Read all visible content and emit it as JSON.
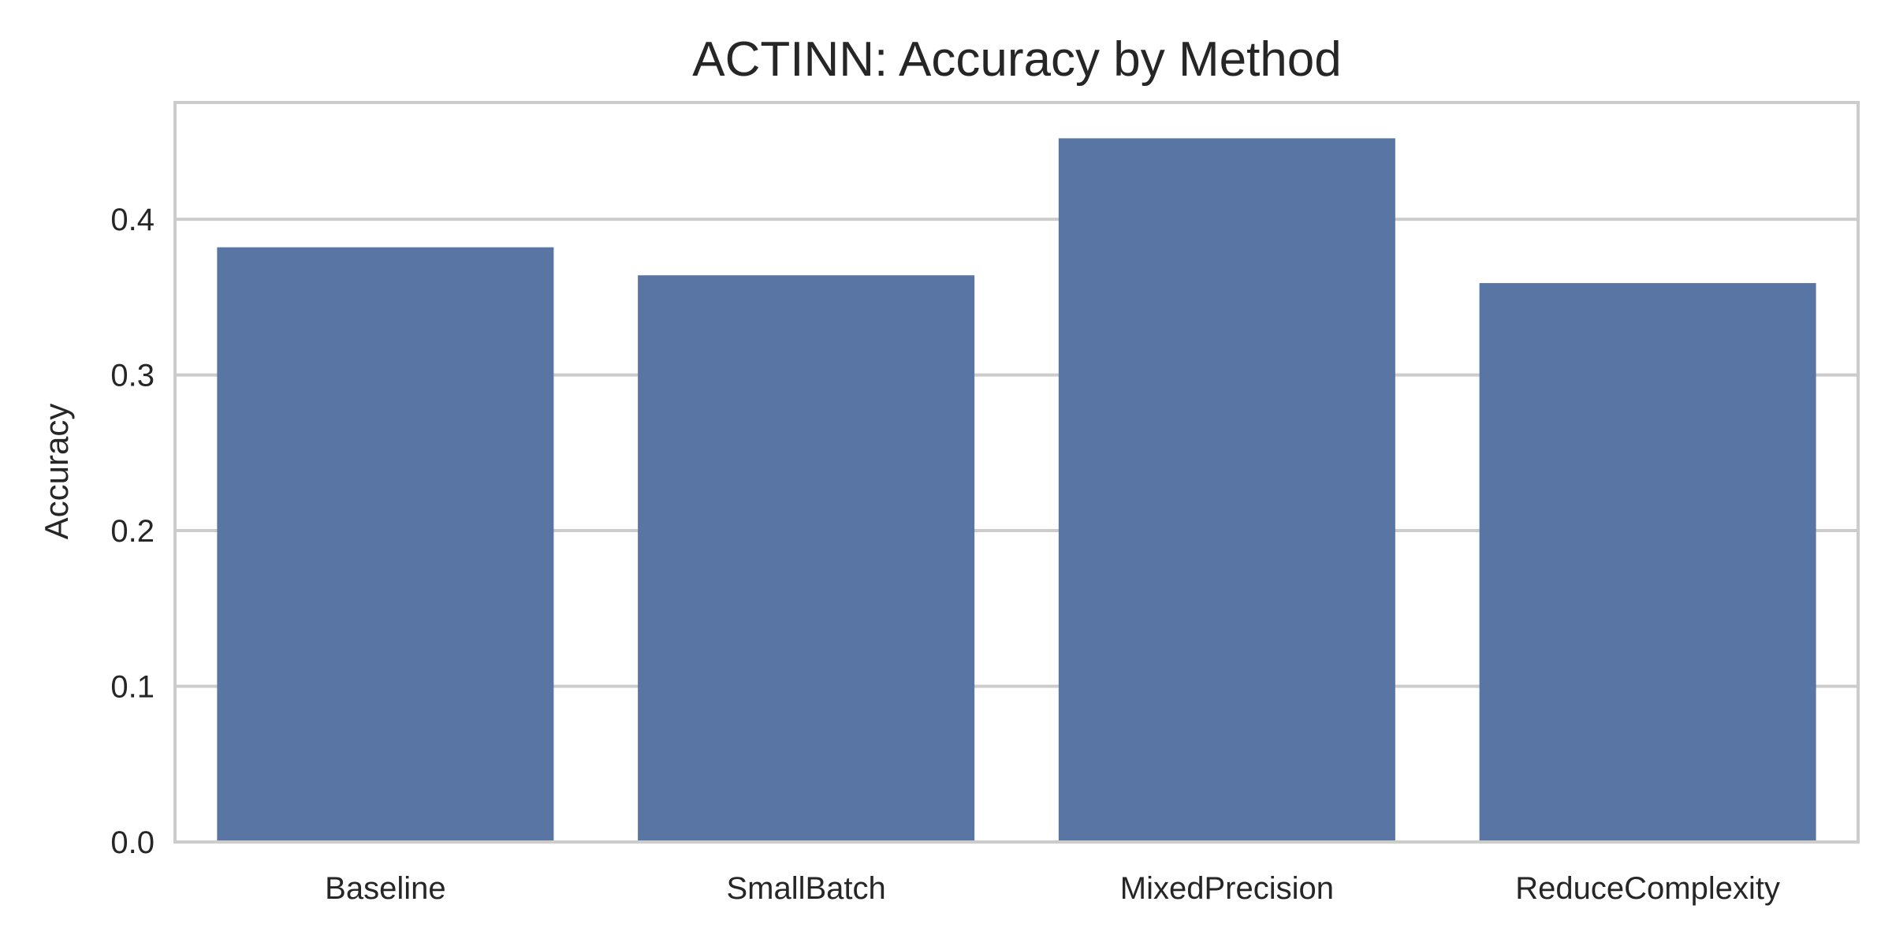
{
  "chart_data": {
    "type": "bar",
    "title": "ACTINN: Accuracy by Method",
    "xlabel": "",
    "ylabel": "Accuracy",
    "categories": [
      "Baseline",
      "SmallBatch",
      "MixedPrecision",
      "ReduceComplexity"
    ],
    "series": [
      {
        "values": [
          0.382,
          0.364,
          0.452,
          0.359
        ]
      }
    ],
    "ylim": [
      0,
      0.475
    ],
    "yticks": [
      0.0,
      0.1,
      0.2,
      0.3,
      0.4
    ],
    "ytick_labels": [
      "0.0",
      "0.1",
      "0.2",
      "0.3",
      "0.4"
    ],
    "grid": "y",
    "colors": {
      "bar": "#5975a4",
      "grid": "#cccccc",
      "frame": "#cccccc",
      "text": "#262626"
    }
  }
}
